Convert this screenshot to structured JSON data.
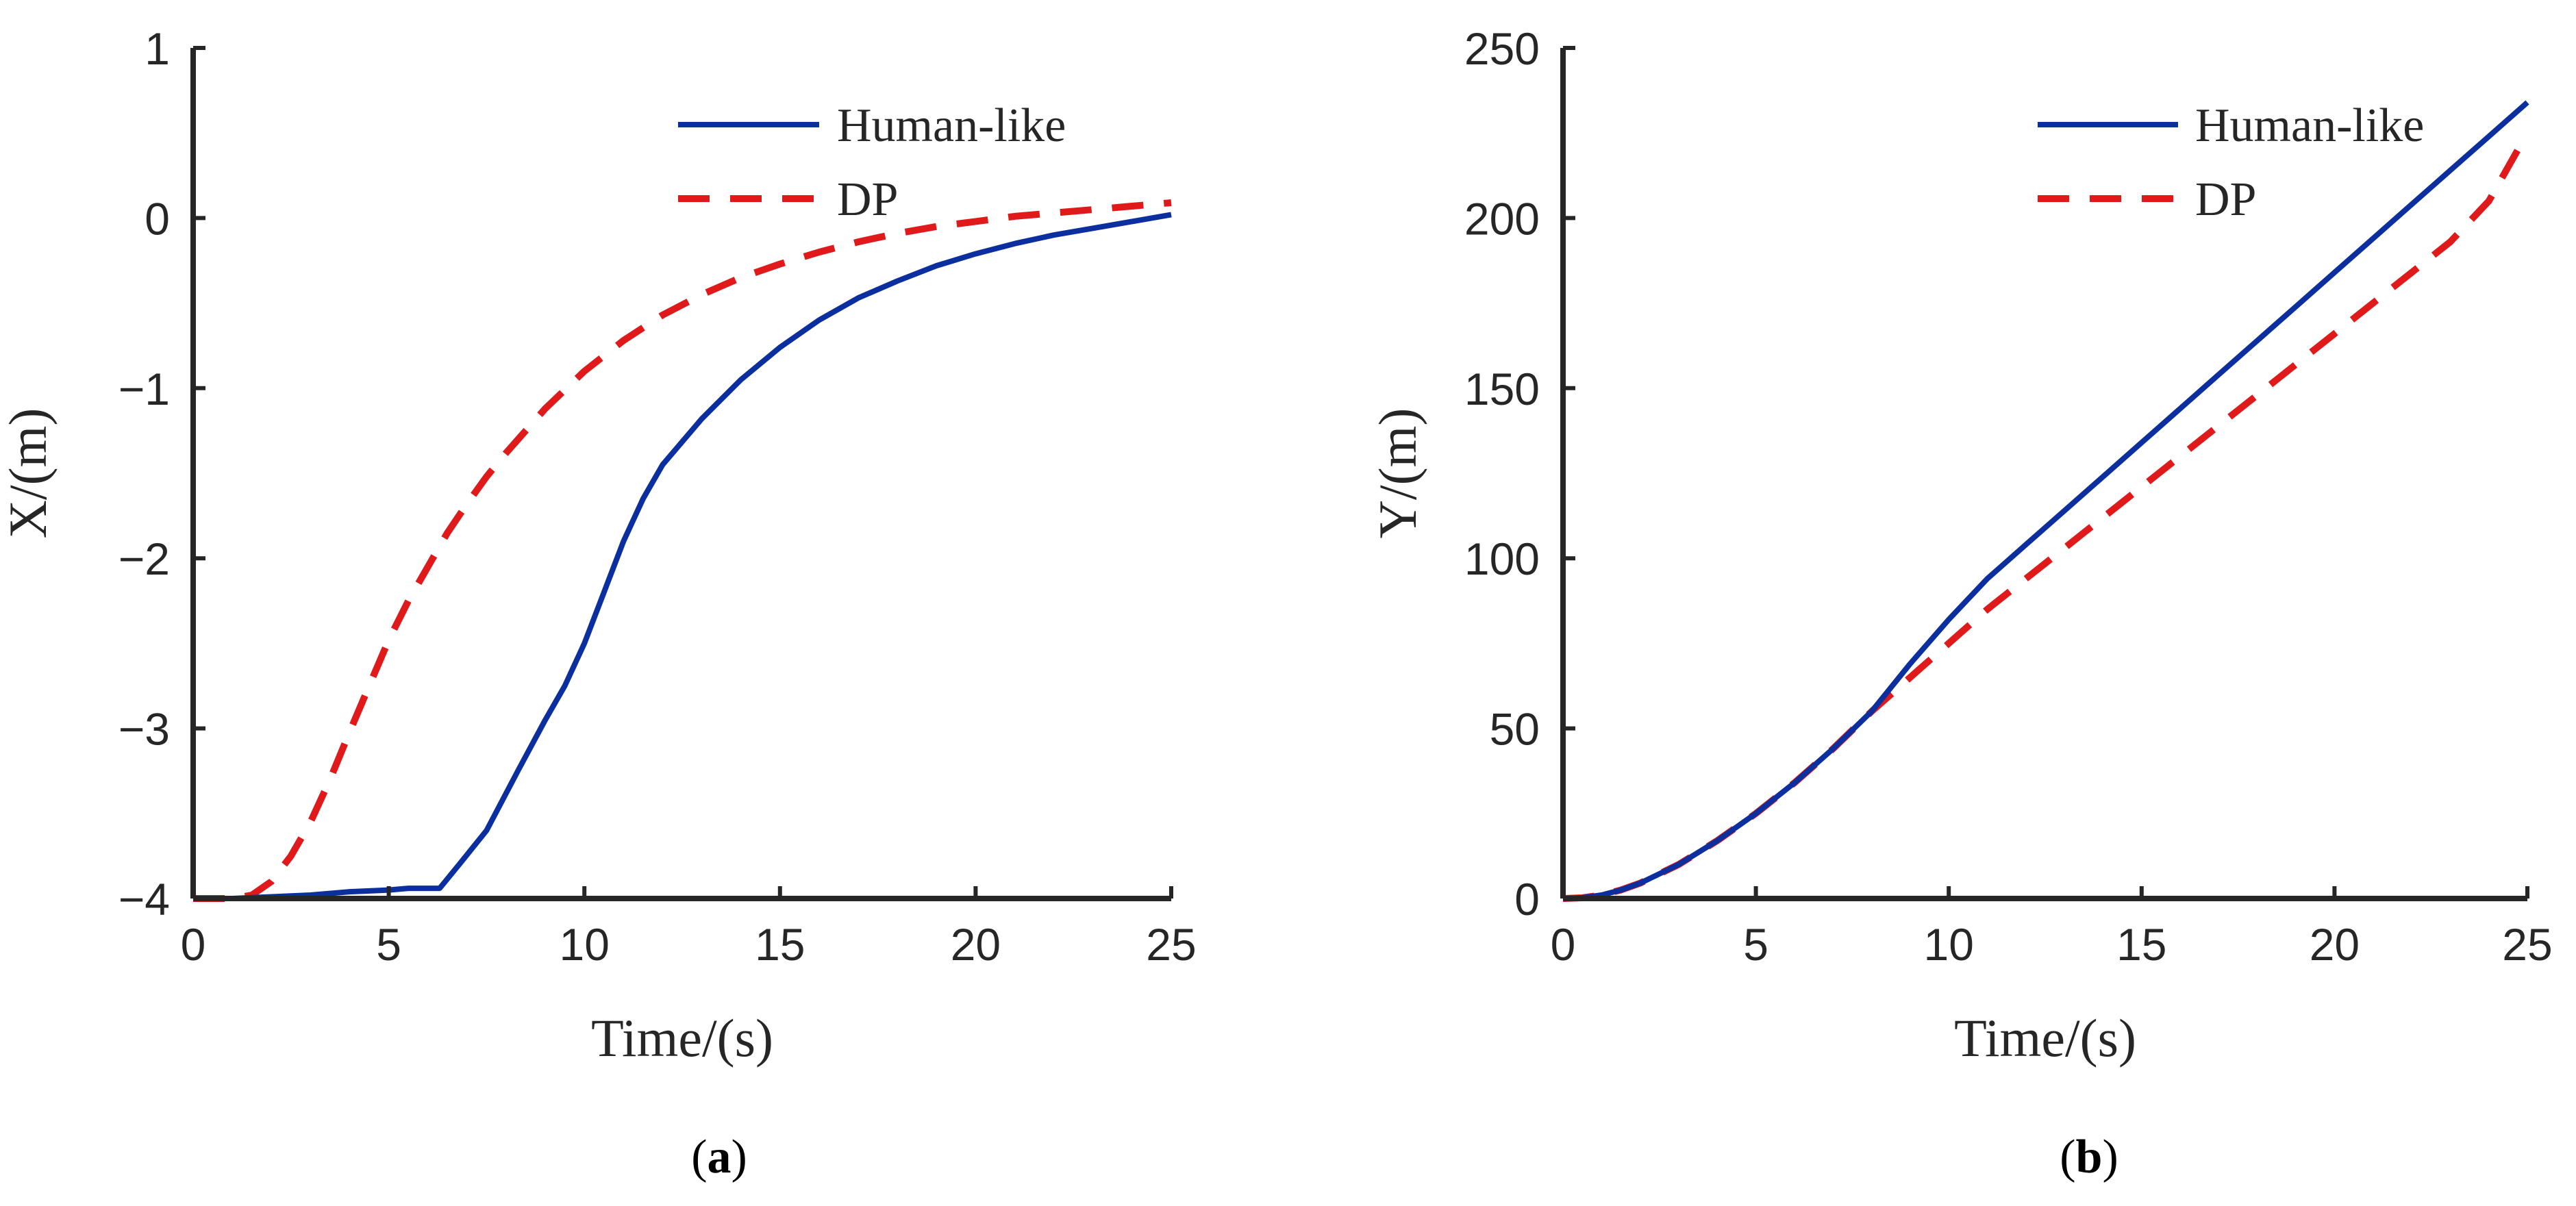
{
  "figure": {
    "panel_a_label": {
      "open": "(",
      "letter": "a",
      "close": ")"
    },
    "panel_b_label": {
      "open": "(",
      "letter": "b",
      "close": ")"
    }
  },
  "colors": {
    "human_like": "#0b2f9e",
    "dp": "#e01a1a",
    "axis": "#262626"
  },
  "chart_data": [
    {
      "type": "line",
      "xlabel": "Time/(s)",
      "ylabel": "X/(m)",
      "xlim": [
        0,
        25
      ],
      "ylim": [
        -4,
        1
      ],
      "xticks": [
        0,
        5,
        10,
        15,
        20,
        25
      ],
      "yticks": [
        -4,
        -3,
        -2,
        -1,
        0,
        1
      ],
      "xtick_labels": [
        "0",
        "5",
        "10",
        "15",
        "20",
        "25"
      ],
      "ytick_labels": [
        "−4",
        "−3",
        "−2",
        "−1",
        "0",
        "1"
      ],
      "grid": false,
      "legend_position": "top-right",
      "series": [
        {
          "name": "Human-like",
          "style": "solid",
          "x": [
            0,
            1,
            2,
            3,
            4,
            5,
            5.5,
            6.3,
            6.8,
            7.5,
            8.3,
            9.0,
            9.5,
            10.0,
            10.5,
            11.0,
            11.5,
            12.0,
            13.0,
            14.0,
            15.0,
            16.0,
            17.0,
            18.0,
            19.0,
            20.0,
            21.0,
            22.0,
            23.0,
            24.0,
            25.0
          ],
          "y": [
            -4,
            -4,
            -3.99,
            -3.98,
            -3.96,
            -3.95,
            -3.94,
            -3.94,
            -3.8,
            -3.6,
            -3.25,
            -2.95,
            -2.75,
            -2.5,
            -2.2,
            -1.9,
            -1.65,
            -1.45,
            -1.18,
            -0.95,
            -0.76,
            -0.6,
            -0.47,
            -0.37,
            -0.28,
            -0.21,
            -0.15,
            -0.1,
            -0.06,
            -0.02,
            0.02
          ]
        },
        {
          "name": "DP",
          "style": "dashed",
          "x": [
            0,
            1,
            1.5,
            2,
            2.5,
            3,
            3.5,
            4,
            4.5,
            5,
            5.5,
            6,
            6.5,
            7,
            7.5,
            8,
            9,
            10,
            11,
            12,
            13,
            14,
            15,
            16,
            17,
            18,
            19,
            20,
            21,
            22,
            23,
            24,
            25
          ],
          "y": [
            -4,
            -4,
            -3.98,
            -3.9,
            -3.75,
            -3.55,
            -3.3,
            -3.02,
            -2.75,
            -2.48,
            -2.25,
            -2.05,
            -1.85,
            -1.68,
            -1.52,
            -1.38,
            -1.12,
            -0.9,
            -0.72,
            -0.57,
            -0.45,
            -0.35,
            -0.27,
            -0.2,
            -0.14,
            -0.09,
            -0.05,
            -0.02,
            0.01,
            0.03,
            0.05,
            0.07,
            0.09
          ]
        }
      ]
    },
    {
      "type": "line",
      "xlabel": "Time/(s)",
      "ylabel": "Y/(m)",
      "xlim": [
        0,
        25
      ],
      "ylim": [
        0,
        250
      ],
      "xticks": [
        0,
        5,
        10,
        15,
        20,
        25
      ],
      "yticks": [
        0,
        50,
        100,
        150,
        200,
        250
      ],
      "xtick_labels": [
        "0",
        "5",
        "10",
        "15",
        "20",
        "25"
      ],
      "ytick_labels": [
        "0",
        "50",
        "100",
        "150",
        "200",
        "250"
      ],
      "grid": false,
      "legend_position": "top-right",
      "series": [
        {
          "name": "Human-like",
          "style": "solid",
          "x": [
            0,
            0.5,
            1,
            1.5,
            2,
            3,
            4,
            5,
            6,
            7,
            8,
            9,
            10,
            11,
            12,
            13,
            14,
            15,
            16,
            17,
            18,
            19,
            20,
            21,
            22,
            23,
            24,
            25
          ],
          "y": [
            0,
            0.2,
            1,
            2.5,
            4.5,
            10,
            17,
            25,
            34,
            44,
            55,
            69,
            82,
            94,
            104,
            114,
            124,
            134,
            144,
            154,
            164,
            174,
            184,
            194,
            204,
            214,
            224,
            234
          ]
        },
        {
          "name": "DP",
          "style": "dashed",
          "x": [
            0,
            0.5,
            1,
            1.5,
            2,
            3,
            4,
            5,
            6,
            7,
            8,
            9,
            10,
            11,
            12,
            13,
            14,
            15,
            16,
            17,
            18,
            19,
            20,
            21,
            22,
            23,
            24,
            25
          ],
          "y": [
            0,
            0.2,
            1,
            2.5,
            4.5,
            10,
            17,
            25,
            34,
            44,
            55,
            65,
            75,
            85,
            94,
            103,
            112,
            121,
            130,
            139,
            148,
            157,
            166,
            175,
            184,
            193,
            205,
            225
          ]
        }
      ]
    }
  ]
}
